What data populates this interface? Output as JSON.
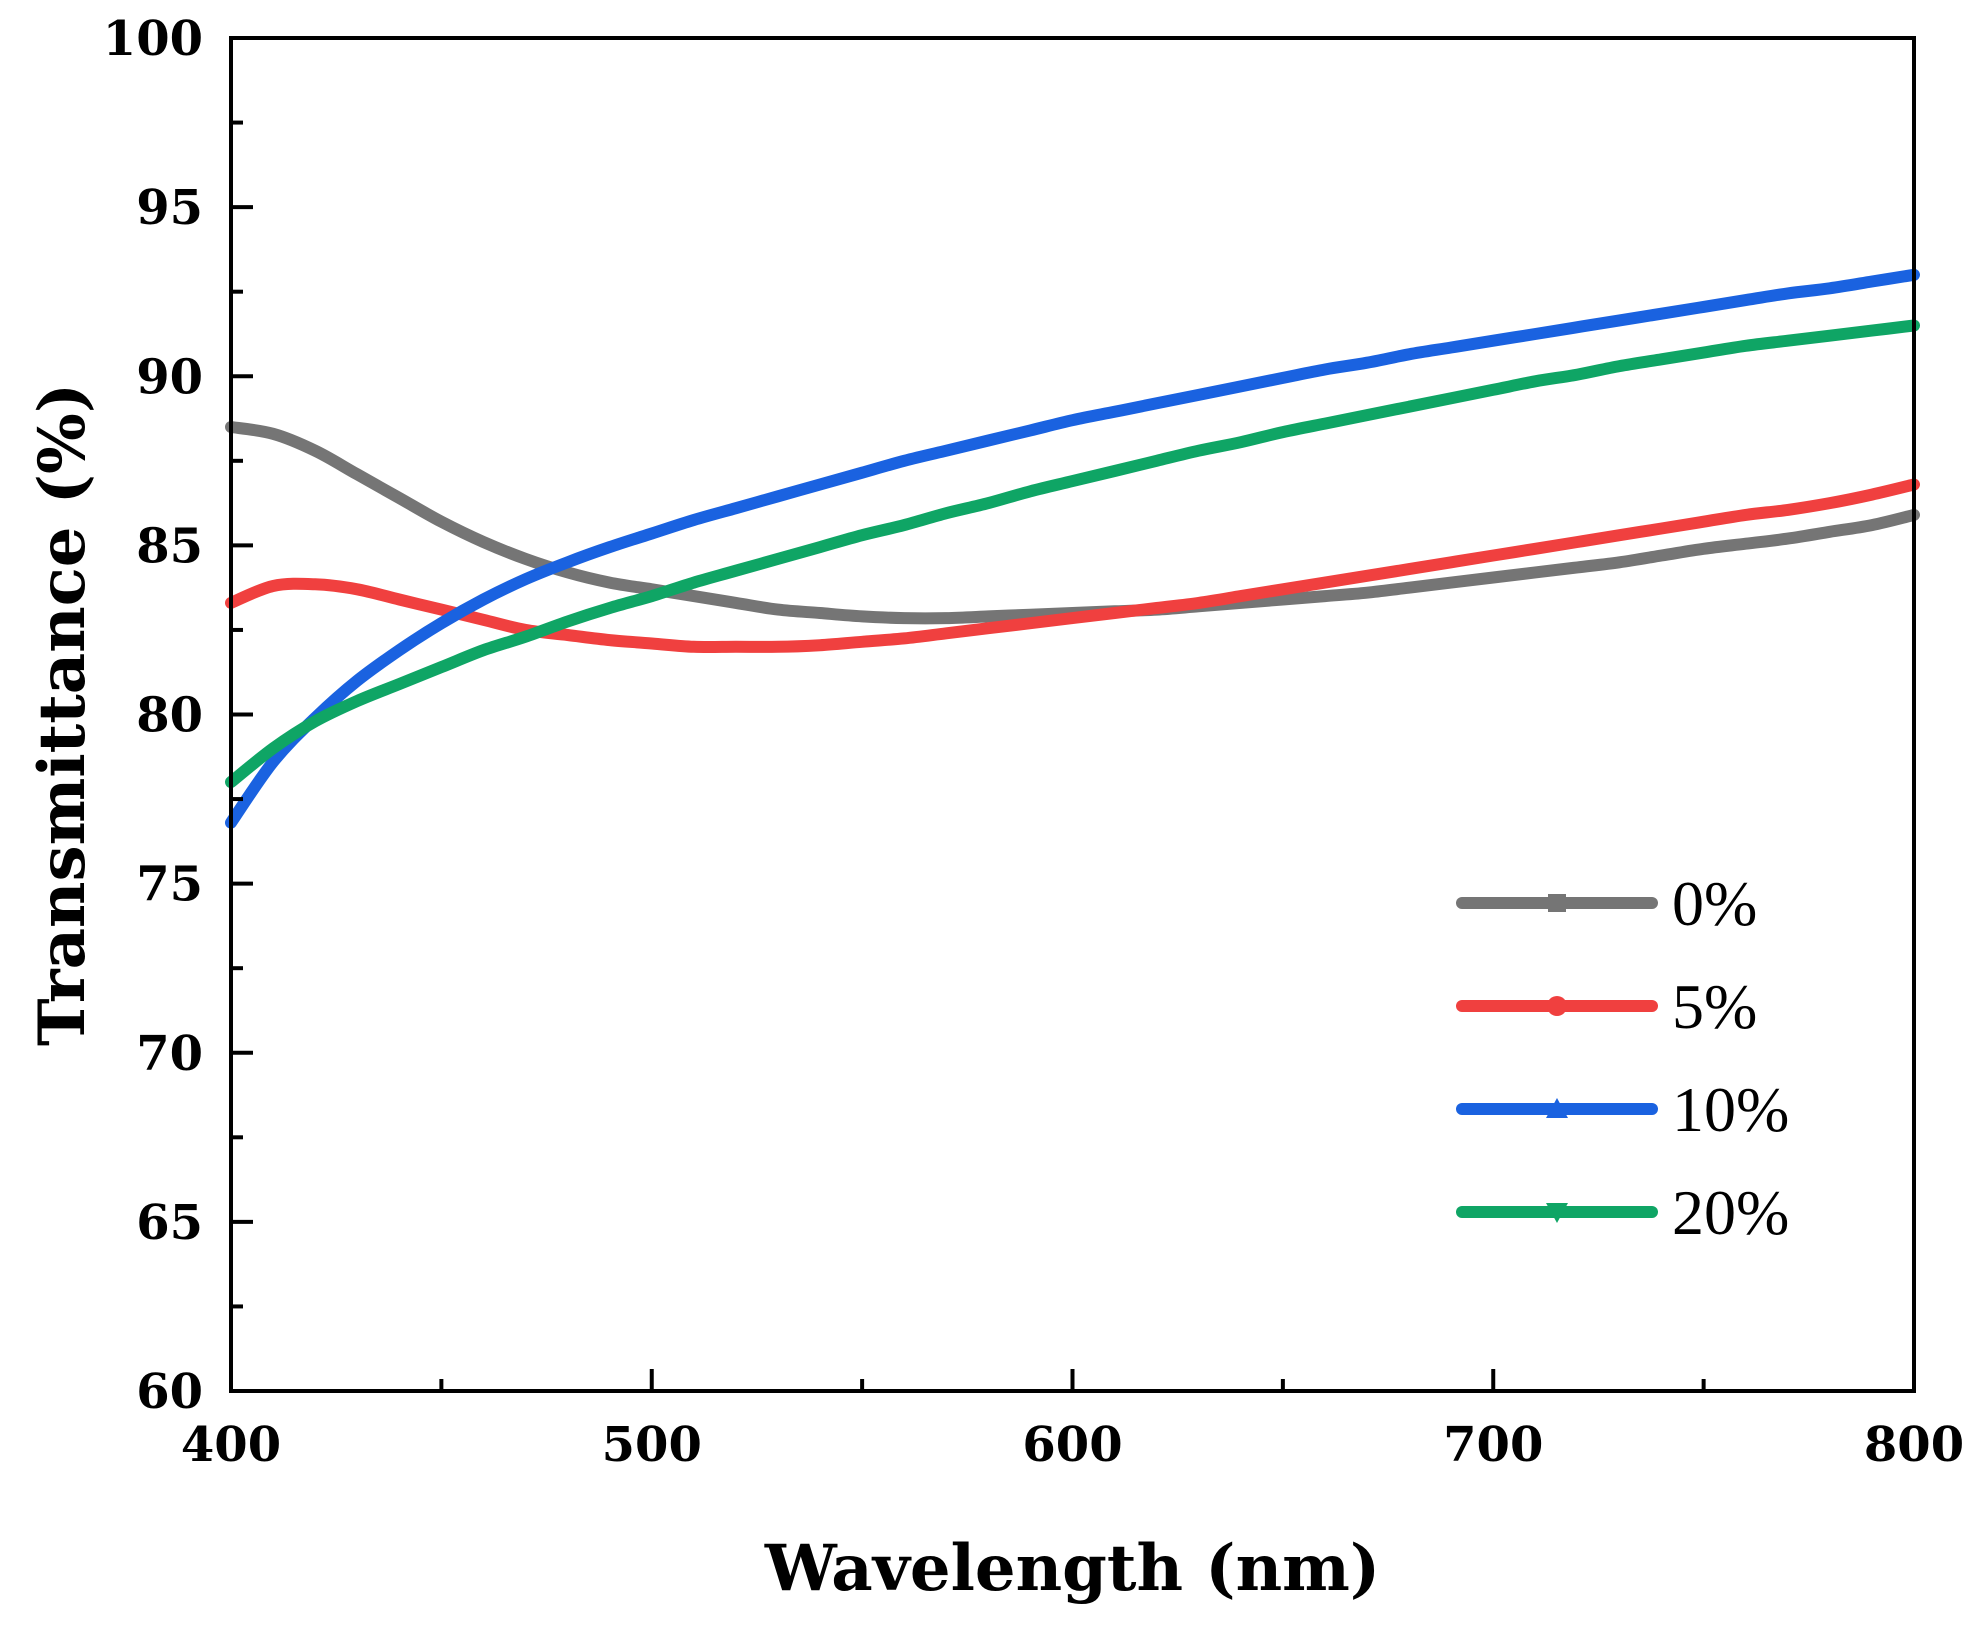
{
  "chart_data": {
    "type": "line",
    "title": "",
    "xlabel": "Wavelength (nm)",
    "ylabel": "Transmittance (%)",
    "xlim": [
      400,
      800
    ],
    "ylim": [
      60,
      100
    ],
    "x_ticks": [
      400,
      500,
      600,
      700,
      800
    ],
    "y_ticks": [
      60,
      65,
      70,
      75,
      80,
      85,
      90,
      95,
      100
    ],
    "grid": false,
    "legend_position": "bottom-right",
    "x": [
      400,
      410,
      420,
      430,
      440,
      450,
      460,
      470,
      480,
      490,
      500,
      510,
      520,
      530,
      540,
      550,
      560,
      570,
      580,
      590,
      600,
      610,
      620,
      630,
      640,
      650,
      660,
      670,
      680,
      690,
      700,
      710,
      720,
      730,
      740,
      750,
      760,
      770,
      780,
      790,
      800
    ],
    "series": [
      {
        "name": "0%",
        "color": "#757575",
        "marker": "square",
        "values": [
          88.5,
          88.3,
          87.8,
          87.1,
          86.4,
          85.7,
          85.1,
          84.6,
          84.2,
          83.9,
          83.7,
          83.5,
          83.3,
          83.1,
          83.0,
          82.9,
          82.85,
          82.85,
          82.9,
          82.95,
          83.0,
          83.05,
          83.1,
          83.2,
          83.3,
          83.4,
          83.5,
          83.6,
          83.75,
          83.9,
          84.05,
          84.2,
          84.35,
          84.5,
          84.7,
          84.9,
          85.05,
          85.2,
          85.4,
          85.6,
          85.9
        ]
      },
      {
        "name": "5%",
        "color": "#f0403f",
        "marker": "circle",
        "values": [
          83.3,
          83.8,
          83.85,
          83.7,
          83.4,
          83.1,
          82.8,
          82.5,
          82.35,
          82.2,
          82.1,
          82.0,
          82.0,
          82.0,
          82.05,
          82.15,
          82.25,
          82.4,
          82.55,
          82.7,
          82.85,
          83.0,
          83.15,
          83.3,
          83.5,
          83.7,
          83.9,
          84.1,
          84.3,
          84.5,
          84.7,
          84.9,
          85.1,
          85.3,
          85.5,
          85.7,
          85.9,
          86.05,
          86.25,
          86.5,
          86.8
        ]
      },
      {
        "name": "10%",
        "color": "#1a62e0",
        "marker": "triangle-up",
        "values": [
          76.8,
          78.6,
          79.9,
          81.0,
          81.9,
          82.7,
          83.4,
          84.0,
          84.5,
          84.95,
          85.35,
          85.75,
          86.1,
          86.45,
          86.8,
          87.15,
          87.5,
          87.8,
          88.1,
          88.4,
          88.7,
          88.95,
          89.2,
          89.45,
          89.7,
          89.95,
          90.2,
          90.4,
          90.65,
          90.85,
          91.05,
          91.25,
          91.45,
          91.65,
          91.85,
          92.05,
          92.25,
          92.45,
          92.6,
          92.8,
          93.0
        ]
      },
      {
        "name": "20%",
        "color": "#0fa565",
        "marker": "triangle-down",
        "values": [
          78.0,
          79.0,
          79.8,
          80.4,
          80.9,
          81.4,
          81.9,
          82.3,
          82.75,
          83.15,
          83.5,
          83.9,
          84.25,
          84.6,
          84.95,
          85.3,
          85.6,
          85.95,
          86.25,
          86.6,
          86.9,
          87.2,
          87.5,
          87.8,
          88.05,
          88.35,
          88.6,
          88.85,
          89.1,
          89.35,
          89.6,
          89.85,
          90.05,
          90.3,
          90.5,
          90.7,
          90.9,
          91.05,
          91.2,
          91.35,
          91.5
        ]
      }
    ]
  }
}
